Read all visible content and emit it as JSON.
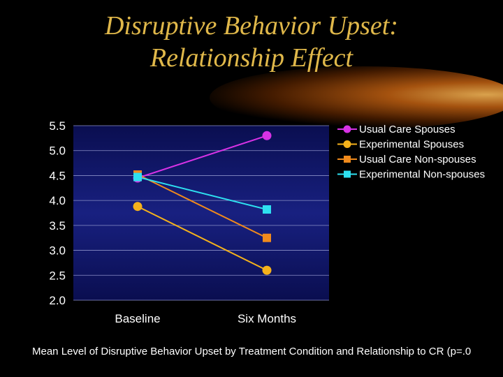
{
  "slide": {
    "title_line1": "Disruptive Behavior Upset:",
    "title_line2": "Relationship Effect",
    "caption": "Mean Level of Disruptive Behavior Upset by Treatment Condition and Relationship  to CR (p=.0"
  },
  "colors": {
    "title": "#e0b84a",
    "plot_background": "#10156a",
    "axis_text": "#ffffff",
    "usual_care_spouses": "#d832e6",
    "experimental_spouses": "#f5b21b",
    "usual_care_nonspouses": "#f08a1c",
    "experimental_nonspouses": "#2ee0f0"
  },
  "chart_data": {
    "type": "line",
    "categories": [
      "Baseline",
      "Six Months"
    ],
    "ylim": [
      2.0,
      5.5
    ],
    "yticks": [
      "2.0",
      "2.5",
      "3.0",
      "3.5",
      "4.0",
      "4.5",
      "5.0",
      "5.5"
    ],
    "legend_position": "top-right",
    "series": [
      {
        "name": "Usual Care Spouses",
        "values": [
          4.45,
          5.3
        ],
        "marker": "circle",
        "color": "#d832e6"
      },
      {
        "name": "Experimental Spouses",
        "values": [
          3.88,
          2.6
        ],
        "marker": "circle",
        "color": "#f5b21b"
      },
      {
        "name": "Usual Care Non-spouses",
        "values": [
          4.52,
          3.25
        ],
        "marker": "square",
        "color": "#f08a1c"
      },
      {
        "name": "Experimental Non-spouses",
        "values": [
          4.47,
          3.82
        ],
        "marker": "square",
        "color": "#2ee0f0"
      }
    ]
  }
}
